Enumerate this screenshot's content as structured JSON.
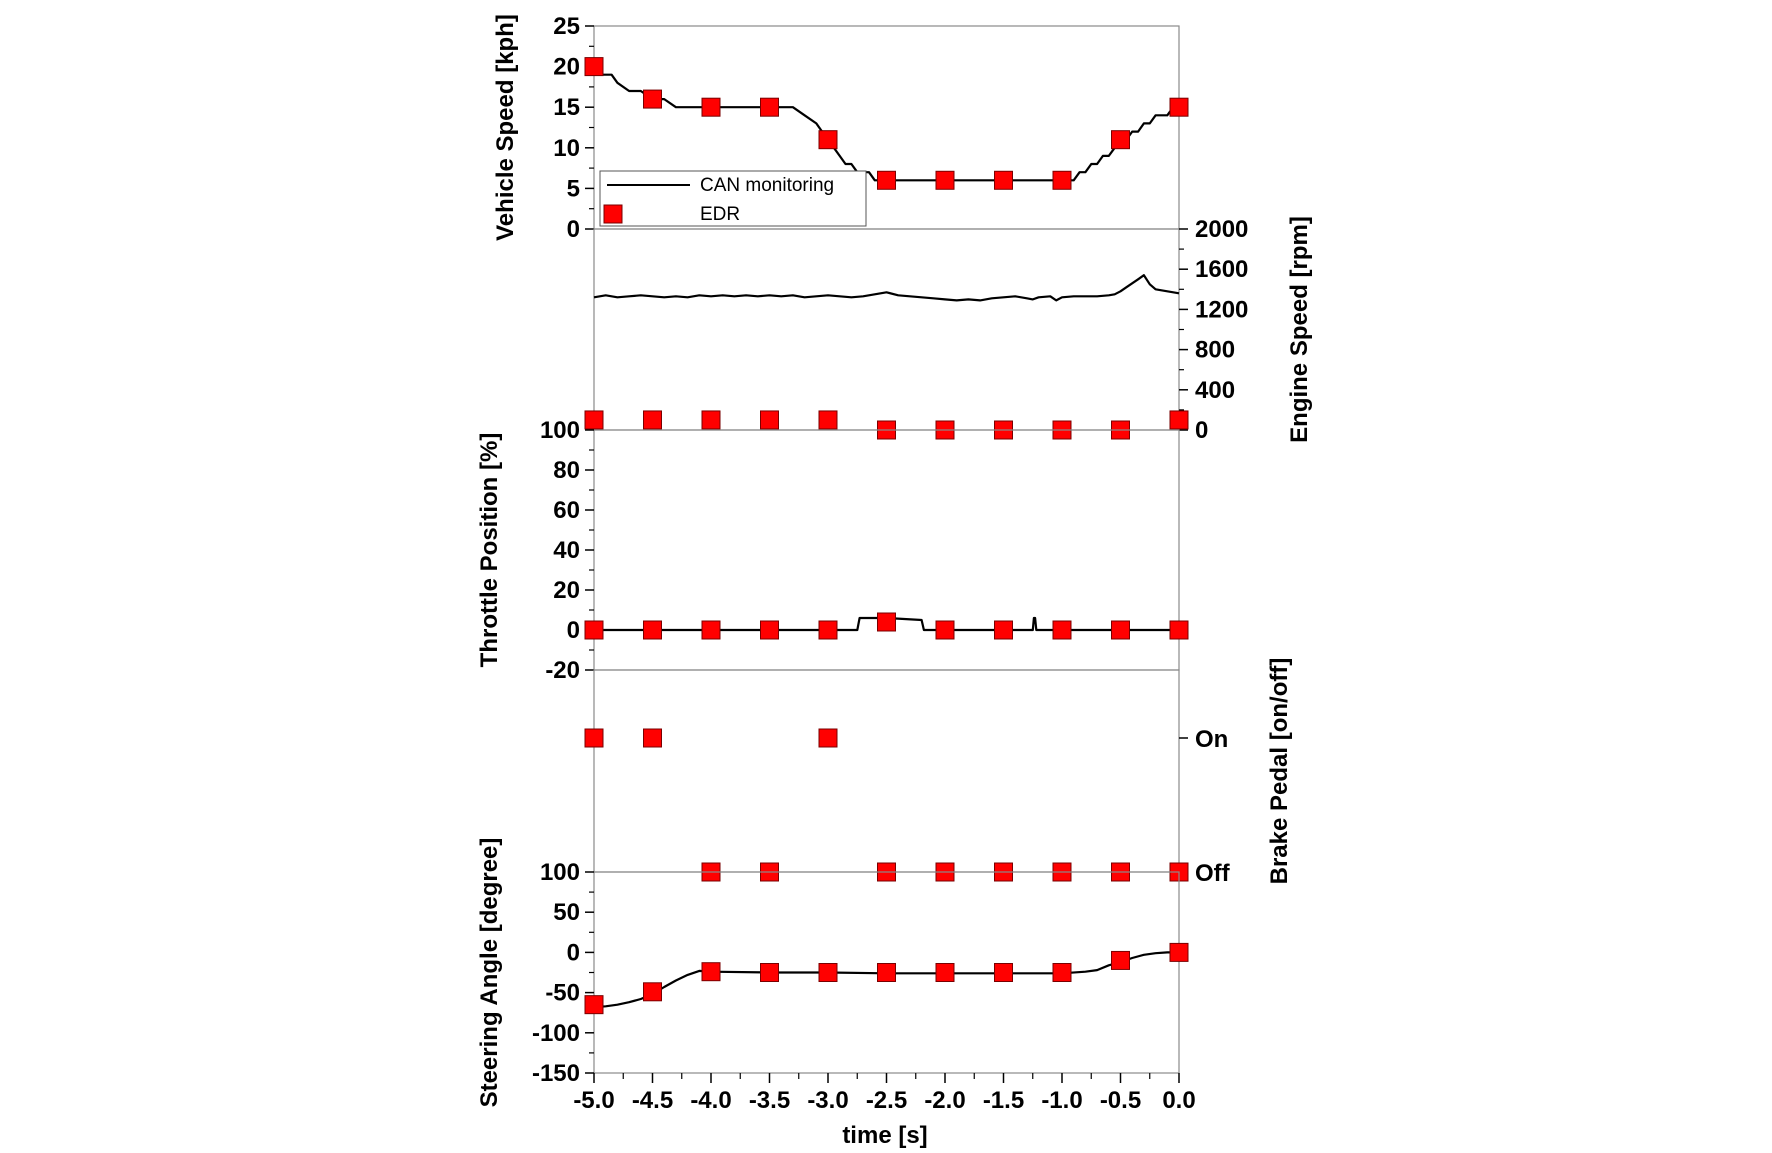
{
  "figure": {
    "xlabel": "time [s]",
    "x_ticks": [
      "-5.0",
      "-4.5",
      "-4.0",
      "-3.5",
      "-3.0",
      "-2.5",
      "-2.0",
      "-1.5",
      "-1.0",
      "-0.5",
      "0.0"
    ],
    "legend": {
      "line_label": "CAN monitoring",
      "marker_label": "EDR"
    }
  },
  "colors": {
    "line": "#000000",
    "marker": "#ff0000",
    "marker_edge": "#7a0000"
  },
  "chart_data": [
    {
      "type": "line",
      "ylabel": "Vehicle Speed [kph]",
      "ylim": [
        0,
        25
      ],
      "y_ticks": [
        "25",
        "20",
        "15",
        "10",
        "5",
        "0"
      ],
      "series": [
        {
          "name": "CAN monitoring",
          "x": [
            -5.0,
            -4.95,
            -4.85,
            -4.8,
            -4.7,
            -4.6,
            -4.5,
            -4.4,
            -4.3,
            -4.0,
            -3.5,
            -3.3,
            -3.2,
            -3.1,
            -3.05,
            -3.0,
            -2.95,
            -2.9,
            -2.85,
            -2.8,
            -2.75,
            -2.7,
            -2.65,
            -2.6,
            -2.5,
            -2.0,
            -1.5,
            -1.0,
            -0.9,
            -0.85,
            -0.8,
            -0.75,
            -0.7,
            -0.65,
            -0.6,
            -0.55,
            -0.5,
            -0.45,
            -0.4,
            -0.35,
            -0.3,
            -0.25,
            -0.2,
            -0.15,
            -0.1,
            -0.05,
            0.0
          ],
          "y": [
            19,
            19,
            19,
            18,
            17,
            17,
            16,
            16,
            15,
            15,
            15,
            15,
            14,
            13,
            12,
            11,
            10,
            9,
            8,
            8,
            7,
            7,
            7,
            6,
            6,
            6,
            6,
            6,
            6,
            7,
            7,
            8,
            8,
            9,
            9,
            10,
            11,
            11,
            12,
            12,
            13,
            13,
            14,
            14,
            14,
            15,
            15
          ]
        },
        {
          "name": "EDR",
          "x": [
            -5.0,
            -4.5,
            -4.0,
            -3.5,
            -3.0,
            -2.5,
            -2.0,
            -1.5,
            -1.0,
            -0.5,
            0.0
          ],
          "y": [
            20,
            16,
            15,
            15,
            11,
            6,
            6,
            6,
            6,
            11,
            15
          ]
        }
      ]
    },
    {
      "type": "line",
      "ylabel": "Engine Speed [rpm]",
      "ylim": [
        0,
        2000
      ],
      "y_ticks": [
        "2000",
        "1600",
        "1200",
        "800",
        "400",
        "0"
      ],
      "series": [
        {
          "name": "CAN monitoring",
          "x": [
            -5.0,
            -4.9,
            -4.8,
            -4.7,
            -4.6,
            -4.5,
            -4.4,
            -4.3,
            -4.2,
            -4.1,
            -4.0,
            -3.9,
            -3.8,
            -3.7,
            -3.6,
            -3.5,
            -3.4,
            -3.3,
            -3.2,
            -3.1,
            -3.0,
            -2.9,
            -2.8,
            -2.7,
            -2.6,
            -2.5,
            -2.4,
            -2.3,
            -2.2,
            -2.1,
            -2.0,
            -1.9,
            -1.8,
            -1.7,
            -1.6,
            -1.5,
            -1.4,
            -1.3,
            -1.25,
            -1.2,
            -1.1,
            -1.05,
            -1.0,
            -0.9,
            -0.8,
            -0.7,
            -0.6,
            -0.55,
            -0.5,
            -0.45,
            -0.4,
            -0.35,
            -0.3,
            -0.25,
            -0.2,
            -0.15,
            -0.1,
            -0.05,
            0.0
          ],
          "y": [
            1320,
            1340,
            1320,
            1330,
            1340,
            1330,
            1320,
            1330,
            1320,
            1340,
            1330,
            1340,
            1330,
            1340,
            1330,
            1340,
            1330,
            1340,
            1320,
            1330,
            1340,
            1330,
            1320,
            1330,
            1350,
            1370,
            1340,
            1330,
            1320,
            1310,
            1300,
            1290,
            1300,
            1290,
            1310,
            1320,
            1330,
            1310,
            1300,
            1320,
            1330,
            1290,
            1320,
            1330,
            1330,
            1330,
            1340,
            1350,
            1380,
            1420,
            1460,
            1500,
            1540,
            1450,
            1400,
            1390,
            1380,
            1370,
            1360
          ]
        },
        {
          "name": "EDR",
          "x": [
            -5.0,
            -4.5,
            -4.0,
            -3.5,
            -3.0,
            -2.5,
            -2.0,
            -1.5,
            -1.0,
            -0.5,
            0.0
          ],
          "y": [
            100,
            100,
            100,
            100,
            100,
            0,
            0,
            0,
            0,
            0,
            100
          ]
        }
      ]
    },
    {
      "type": "line",
      "ylabel": "Throttle Position [%]",
      "ylim": [
        -20,
        100
      ],
      "y_ticks": [
        "100",
        "80",
        "60",
        "40",
        "20",
        "0",
        "-20"
      ],
      "series": [
        {
          "name": "CAN monitoring",
          "x": [
            -5.0,
            -4.0,
            -3.0,
            -2.75,
            -2.73,
            -2.5,
            -2.2,
            -2.18,
            -1.5,
            -1.25,
            -1.24,
            -1.23,
            -1.22,
            -1.0,
            0.0
          ],
          "y": [
            0,
            0,
            0,
            0,
            6,
            6,
            5,
            0,
            0,
            0,
            6,
            6,
            0,
            0,
            0
          ]
        },
        {
          "name": "EDR",
          "x": [
            -5.0,
            -4.5,
            -4.0,
            -3.5,
            -3.0,
            -2.5,
            -2.0,
            -1.5,
            -1.0,
            -0.5,
            0.0
          ],
          "y": [
            0,
            0,
            0,
            0,
            0,
            4,
            0,
            0,
            0,
            0,
            0
          ]
        }
      ]
    },
    {
      "type": "scatter",
      "ylabel": "Brake Pedal [on/off]",
      "y_ticks": [
        "On",
        "Off"
      ],
      "series": [
        {
          "name": "EDR",
          "x": [
            -5.0,
            -4.5,
            -4.0,
            -3.5,
            -3.0,
            -2.5,
            -2.0,
            -1.5,
            -1.0,
            -0.5,
            0.0
          ],
          "y": [
            "On",
            "On",
            "Off",
            "Off",
            "On",
            "Off",
            "Off",
            "Off",
            "Off",
            "Off",
            "Off"
          ]
        }
      ]
    },
    {
      "type": "line",
      "ylabel": "Steering Angle [degree]",
      "ylim": [
        -150,
        100
      ],
      "y_ticks": [
        "100",
        "50",
        "0",
        "-50",
        "-100",
        "-150"
      ],
      "series": [
        {
          "name": "CAN monitoring",
          "x": [
            -5.0,
            -4.9,
            -4.8,
            -4.7,
            -4.6,
            -4.5,
            -4.4,
            -4.3,
            -4.2,
            -4.1,
            -4.0,
            -3.5,
            -3.0,
            -2.5,
            -2.0,
            -1.5,
            -1.0,
            -0.8,
            -0.7,
            -0.6,
            -0.5,
            -0.4,
            -0.3,
            -0.2,
            -0.1,
            0.0
          ],
          "y": [
            -68,
            -67,
            -65,
            -62,
            -58,
            -52,
            -43,
            -35,
            -28,
            -23,
            -24,
            -25,
            -25,
            -26,
            -26,
            -26,
            -26,
            -24,
            -22,
            -16,
            -12,
            -7,
            -3,
            -1,
            0,
            0
          ]
        },
        {
          "name": "EDR",
          "x": [
            -5.0,
            -4.5,
            -4.0,
            -3.5,
            -3.0,
            -2.5,
            -2.0,
            -1.5,
            -1.0,
            -0.5,
            0.0
          ],
          "y": [
            -65,
            -49,
            -24,
            -25,
            -25,
            -25,
            -25,
            -25,
            -25,
            -10,
            0
          ]
        }
      ]
    }
  ]
}
